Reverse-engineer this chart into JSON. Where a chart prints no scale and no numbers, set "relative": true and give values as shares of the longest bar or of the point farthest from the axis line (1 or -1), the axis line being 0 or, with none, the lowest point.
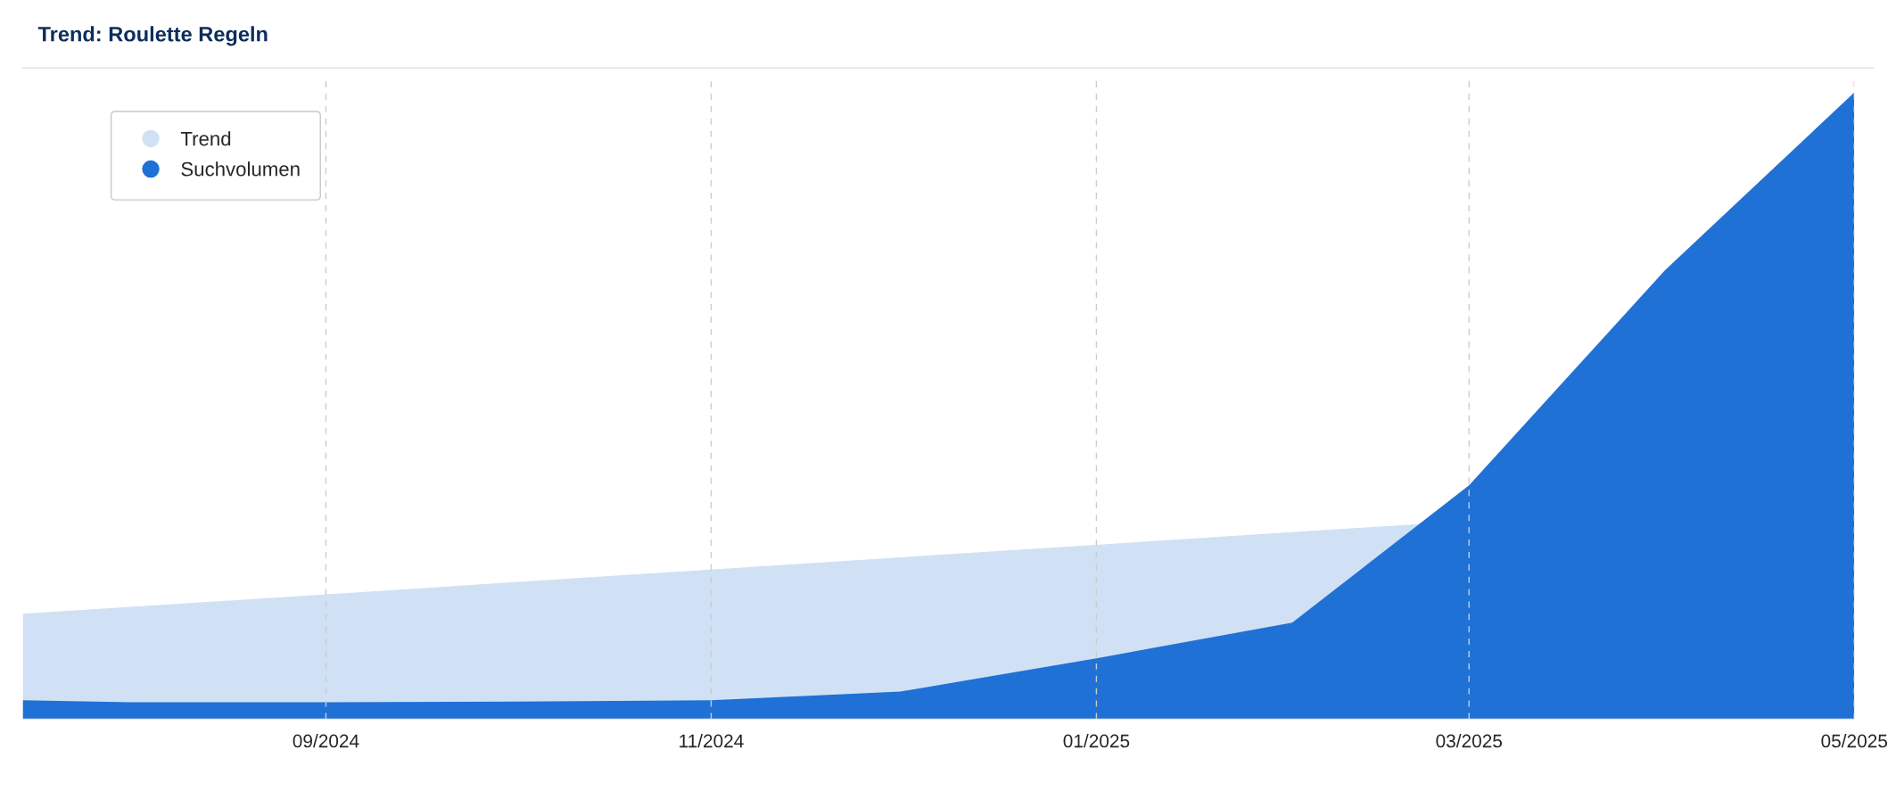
{
  "chart_data": {
    "type": "area",
    "title": "Trend: Roulette Regeln",
    "relative": true,
    "x": [
      "2024-07-15",
      "2024-08-01",
      "2024-09-01",
      "2024-10-01",
      "2024-11-01",
      "2024-12-01",
      "2025-01-01",
      "2025-02-01",
      "2025-03-01",
      "2025-04-01",
      "2025-05-01"
    ],
    "series": [
      {
        "name": "Trend",
        "color": "#d0e1f5",
        "x": [
          "2024-07-15",
          "2025-05-01"
        ],
        "values": [
          0.168,
          0.356
        ]
      },
      {
        "name": "Suchvolumen",
        "color": "#1f71d6",
        "values": [
          0.03,
          0.027,
          0.027,
          0.028,
          0.03,
          0.044,
          0.097,
          0.154,
          0.373,
          0.716,
          1.0
        ]
      }
    ],
    "xlim": [
      "2024-07-15",
      "2025-05-01"
    ],
    "xticks": [
      {
        "value": "2024-09-01",
        "label": "09/2024"
      },
      {
        "value": "2024-11-01",
        "label": "11/2024"
      },
      {
        "value": "2025-01-01",
        "label": "01/2025"
      },
      {
        "value": "2025-03-01",
        "label": "03/2025"
      },
      {
        "value": "2025-05-01",
        "label": "05/2025"
      }
    ],
    "grid": "x",
    "legend": "top left"
  }
}
